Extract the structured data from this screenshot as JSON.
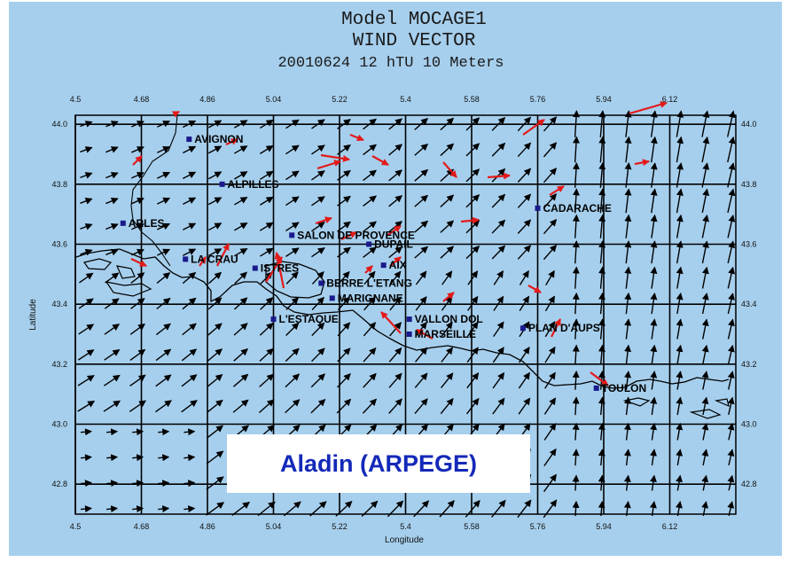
{
  "title": {
    "line1": "Model  MOCAGE1",
    "line2": "WIND  VECTOR",
    "line3": "20010624  12 hTU  10 Meters"
  },
  "overlay_label": "Aladin (ARPEGE)",
  "axes": {
    "xlabel": "Longitude",
    "ylabel": "Latitude",
    "lon_ticks": [
      "4.5",
      "4.68",
      "4.86",
      "5.04",
      "5.22",
      "5.4",
      "5.58",
      "5.76",
      "5.94",
      "6.12"
    ],
    "lat_ticks": [
      "44.0",
      "43.8",
      "43.6",
      "43.4",
      "43.2",
      "43.0",
      "42.8"
    ],
    "lon_range": [
      4.5,
      6.3
    ],
    "lat_range": [
      42.7,
      44.03
    ]
  },
  "colors": {
    "background": "#a6cfed",
    "wind_arrow": "#000000",
    "observed_arrow": "#e31a1a",
    "station_marker": "#1a1a8c",
    "overlay_text": "#1429b8"
  },
  "cities": [
    {
      "name": "AVIGNON",
      "lon": 4.81,
      "lat": 43.95
    },
    {
      "name": "ALPILLES",
      "lon": 4.9,
      "lat": 43.8
    },
    {
      "name": "ARLES",
      "lon": 4.63,
      "lat": 43.67
    },
    {
      "name": "CADARACHE",
      "lon": 5.76,
      "lat": 43.72
    },
    {
      "name": "SALON DE PROVENCE",
      "lon": 5.09,
      "lat": 43.63
    },
    {
      "name": "DUPAIL",
      "lon": 5.3,
      "lat": 43.6
    },
    {
      "name": "LA CRAU",
      "lon": 4.8,
      "lat": 43.55
    },
    {
      "name": "AIX",
      "lon": 5.34,
      "lat": 43.53
    },
    {
      "name": "ISTRES",
      "lon": 4.99,
      "lat": 43.52
    },
    {
      "name": "BERRE L'ETANG",
      "lon": 5.17,
      "lat": 43.47
    },
    {
      "name": "MARIGNANE",
      "lon": 5.2,
      "lat": 43.42
    },
    {
      "name": "L'ESTAQUE",
      "lon": 5.04,
      "lat": 43.35
    },
    {
      "name": "VALLON DOL",
      "lon": 5.41,
      "lat": 43.35
    },
    {
      "name": "MARSEILLE",
      "lon": 5.41,
      "lat": 43.3
    },
    {
      "name": "PLAN D'AUPS",
      "lon": 5.72,
      "lat": 43.32
    },
    {
      "name": "TOULON",
      "lon": 5.92,
      "lat": 43.12
    }
  ]
}
